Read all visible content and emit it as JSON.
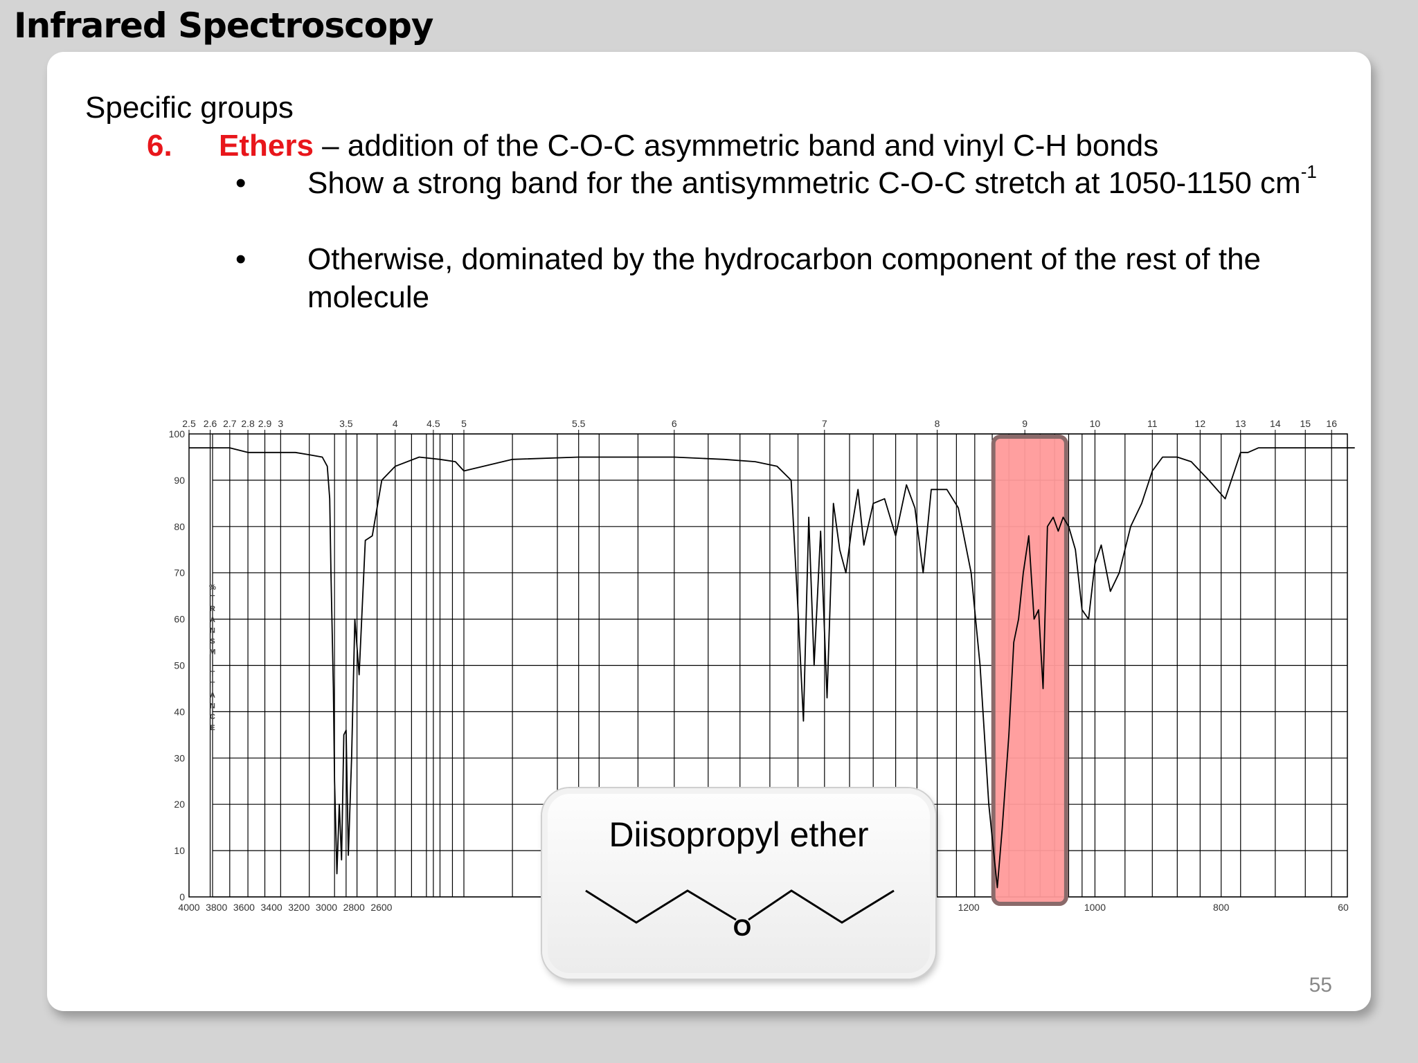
{
  "slide": {
    "title": "Infrared Spectroscopy",
    "subtitle": "Specific groups",
    "item_number": "6.",
    "item_name": "Ethers",
    "item_desc": " – addition of the C-O-C asymmetric band and vinyl C-H bonds",
    "bullets": [
      {
        "symbol": "•",
        "text": "Show a strong band for the antisymmetric C-O-C stretch at 1050-1150 cm",
        "sup": "-1"
      },
      {
        "symbol": "•",
        "line1": "Otherwise, dominated by the hydrocarbon component of the rest of the",
        "line2": "molecule"
      }
    ],
    "page_number": "55",
    "highlight_color": "#ff9a9a",
    "accent_color": "#e8161b"
  },
  "callout": {
    "title": "Diisopropyl ether",
    "atom_label": "O"
  },
  "chart_data": {
    "type": "line",
    "title": "",
    "ylabel": "%TRANSMITTANCE",
    "xlabel": "",
    "x_ticks_bottom": [
      "4000",
      "3800",
      "3600",
      "3400",
      "3200",
      "3000",
      "2800",
      "2600",
      "1200",
      "1000",
      "800",
      "60"
    ],
    "x_ticks_top": [
      "2.5",
      "2.6",
      "2.7",
      "2.8",
      "2.9",
      "3",
      "3.5",
      "4",
      "4.5",
      "5",
      "5.5",
      "6",
      "7",
      "8",
      "9",
      "10",
      "11",
      "12",
      "13",
      "14",
      "15",
      "16"
    ],
    "y_ticks": [
      "100",
      "90",
      "80",
      "70",
      "60",
      "50",
      "40",
      "30",
      "20",
      "10",
      "0"
    ],
    "ylim": [
      0,
      100
    ],
    "highlight_band_cm1": [
      1150,
      1050
    ],
    "series": [
      {
        "x_um": [
          2.5,
          2.6,
          2.7,
          2.8,
          2.9,
          3.0,
          3.1,
          3.2,
          3.3,
          3.34,
          3.36,
          3.37,
          3.39,
          3.4,
          3.42,
          3.44,
          3.46,
          3.48,
          3.5,
          3.52,
          3.55,
          3.58,
          3.62,
          3.68,
          3.75,
          3.85,
          4.0,
          4.3,
          4.6,
          4.85,
          5.0,
          5.2,
          5.5,
          5.8,
          6.0,
          6.3,
          6.5,
          6.65,
          6.75,
          6.8,
          6.84,
          6.88,
          6.92,
          6.97,
          7.02,
          7.07,
          7.12,
          7.17,
          7.22,
          7.27,
          7.32,
          7.4,
          7.5,
          7.6,
          7.7,
          7.78,
          7.86,
          7.94,
          8.0,
          8.1,
          8.22,
          8.36,
          8.46,
          8.56,
          8.66,
          8.72,
          8.8,
          8.86,
          8.92,
          8.98,
          9.05,
          9.12,
          9.18,
          9.24,
          9.3,
          9.38,
          9.45,
          9.52,
          9.6,
          9.7,
          9.8,
          9.9,
          10.0,
          10.1,
          10.25,
          10.4,
          10.6,
          10.8,
          11.0,
          11.2,
          11.5,
          11.8,
          12.2,
          12.6,
          13.0,
          13.2,
          13.5,
          14.0,
          15.0,
          16.0,
          17.0
        ],
        "y": [
          97,
          97,
          97,
          96,
          96,
          96,
          96,
          95.5,
          95,
          93,
          86,
          70,
          45,
          25,
          5,
          20,
          8,
          35,
          36,
          9,
          30,
          60,
          48,
          77,
          78,
          90,
          93,
          95,
          94.5,
          94,
          92,
          94.5,
          95,
          95,
          95,
          94.5,
          94,
          93,
          90,
          62,
          38,
          82,
          50,
          79,
          43,
          85,
          75,
          70,
          80,
          88,
          76,
          85,
          86,
          78,
          89,
          84,
          70,
          88,
          88,
          88,
          84,
          70,
          50,
          20,
          2,
          15,
          35,
          55,
          60,
          70,
          78,
          60,
          62,
          45,
          80,
          82,
          79,
          82,
          80,
          75,
          62,
          60,
          72,
          76,
          66,
          70,
          80,
          85,
          92,
          95,
          95,
          94,
          90,
          86,
          96,
          96,
          97,
          97,
          97,
          97,
          97
        ]
      }
    ]
  }
}
